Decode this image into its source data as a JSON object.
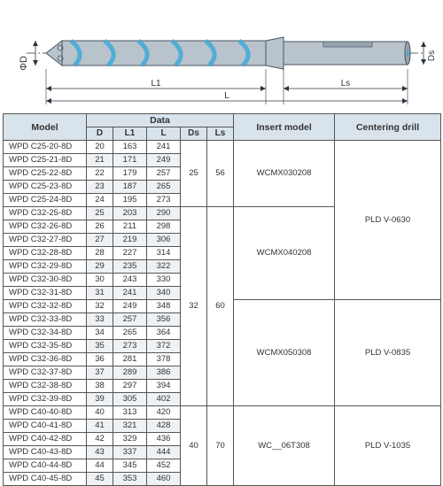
{
  "diagram": {
    "labels": {
      "phiD": "ΦD",
      "L1": "L1",
      "L": "L",
      "Ls": "Ls",
      "Ds": "Ds"
    },
    "colors": {
      "body": "#b8c3cc",
      "bodyDark": "#96a3ad",
      "coolant": "#3fa9d6",
      "outline": "#4a5560",
      "dim": "#2b3640"
    }
  },
  "table": {
    "headers": {
      "model": "Model",
      "data": "Data",
      "D": "D",
      "L1": "L1",
      "L": "L",
      "Ds": "Ds",
      "Ls": "Ls",
      "insert": "Insert model",
      "center": "Centering drill"
    },
    "groups": [
      {
        "ds": 25,
        "ls": 56,
        "insert": "WCMX030208",
        "center": "PLD  V-0630",
        "centerSpan": 12,
        "rows": [
          {
            "m": "WPD C25-20-8D",
            "d": 20,
            "l1": 163,
            "l": 241
          },
          {
            "m": "WPD C25-21-8D",
            "d": 21,
            "l1": 171,
            "l": 249
          },
          {
            "m": "WPD C25-22-8D",
            "d": 22,
            "l1": 179,
            "l": 257
          },
          {
            "m": "WPD C25-23-8D",
            "d": 23,
            "l1": 187,
            "l": 265
          },
          {
            "m": "WPD C25-24-8D",
            "d": 24,
            "l1": 195,
            "l": 273
          }
        ]
      },
      {
        "ds": 32,
        "ls": 60,
        "insert": "WCMX040208",
        "rows": [
          {
            "m": "WPD C32-25-8D",
            "d": 25,
            "l1": 203,
            "l": 290
          },
          {
            "m": "WPD C32-26-8D",
            "d": 26,
            "l1": 211,
            "l": 298
          },
          {
            "m": "WPD C32-27-8D",
            "d": 27,
            "l1": 219,
            "l": 306
          },
          {
            "m": "WPD C32-28-8D",
            "d": 28,
            "l1": 227,
            "l": 314
          },
          {
            "m": "WPD C32-29-8D",
            "d": 29,
            "l1": 235,
            "l": 322
          },
          {
            "m": "WPD C32-30-8D",
            "d": 30,
            "l1": 243,
            "l": 330
          },
          {
            "m": "WPD C32-31-8D",
            "d": 31,
            "l1": 241,
            "l": 340
          }
        ]
      },
      {
        "ds": null,
        "ls": null,
        "insert": "WCMX050308",
        "center": "PLD  V-0835",
        "centerSpan": 8,
        "continueDsLs": true,
        "rows": [
          {
            "m": "WPD C32-32-8D",
            "d": 32,
            "l1": 249,
            "l": 348
          },
          {
            "m": "WPD C32-33-8D",
            "d": 33,
            "l1": 257,
            "l": 356
          },
          {
            "m": "WPD C32-34-8D",
            "d": 34,
            "l1": 265,
            "l": 364
          },
          {
            "m": "WPD C32-35-8D",
            "d": 35,
            "l1": 273,
            "l": 372
          },
          {
            "m": "WPD C32-36-8D",
            "d": 36,
            "l1": 281,
            "l": 378
          },
          {
            "m": "WPD C32-37-8D",
            "d": 37,
            "l1": 289,
            "l": 386
          },
          {
            "m": "WPD C32-38-8D",
            "d": 38,
            "l1": 297,
            "l": 394
          },
          {
            "m": "WPD C32-39-8D",
            "d": 39,
            "l1": 305,
            "l": 402
          }
        ]
      },
      {
        "ds": 40,
        "ls": 70,
        "insert": "WC__06T308",
        "center": "PLD  V-1035",
        "centerSpan": 6,
        "rows": [
          {
            "m": "WPD C40-40-8D",
            "d": 40,
            "l1": 313,
            "l": 420
          },
          {
            "m": "WPD C40-41-8D",
            "d": 41,
            "l1": 321,
            "l": 428
          },
          {
            "m": "WPD C40-42-8D",
            "d": 42,
            "l1": 329,
            "l": 436
          },
          {
            "m": "WPD C40-43-8D",
            "d": 43,
            "l1": 337,
            "l": 444
          },
          {
            "m": "WPD C40-44-8D",
            "d": 44,
            "l1": 345,
            "l": 452
          },
          {
            "m": "WPD C40-45-8D",
            "d": 45,
            "l1": 353,
            "l": 460
          }
        ]
      }
    ]
  }
}
